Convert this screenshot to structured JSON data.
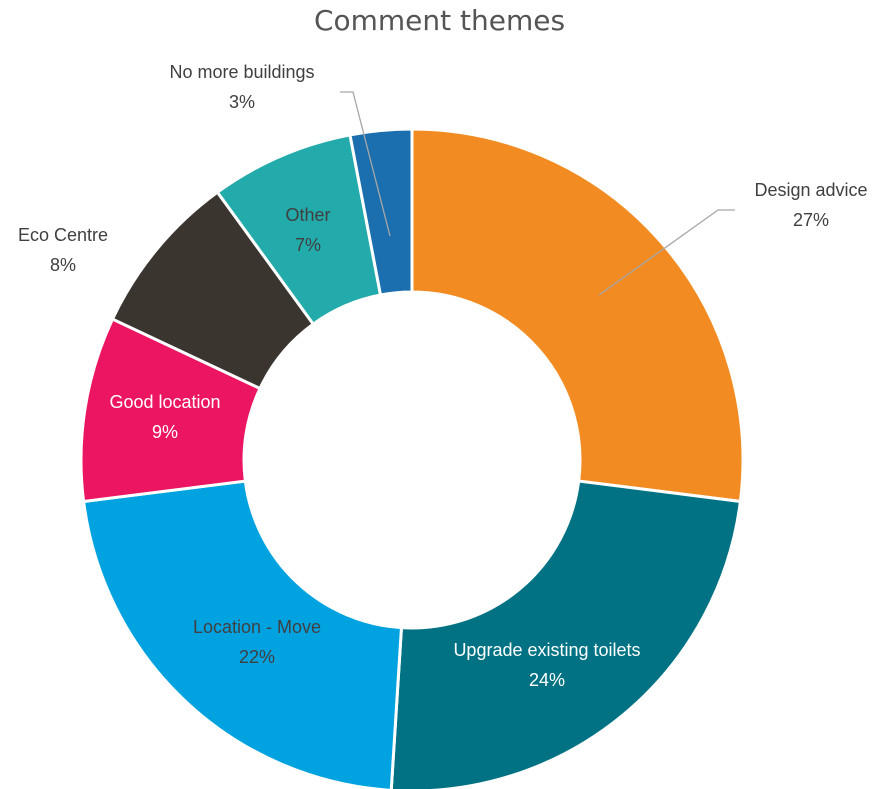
{
  "chart_data": {
    "type": "pie",
    "variant": "doughnut",
    "title": "Comment themes",
    "unit": "%",
    "slices": [
      {
        "label": "Design advice",
        "value": 27,
        "pct_label": "27%",
        "color": "#F28C22",
        "label_color": "#404040"
      },
      {
        "label": "Upgrade existing toilets",
        "value": 24,
        "pct_label": "24%",
        "color": "#007283",
        "label_color": "#FFFFFF"
      },
      {
        "label": "Location - Move",
        "value": 22,
        "pct_label": "22%",
        "color": "#00A2E0",
        "label_color": "#404040"
      },
      {
        "label": "Good location",
        "value": 9,
        "pct_label": "9%",
        "color": "#EC1561",
        "label_color": "#FFFFFF"
      },
      {
        "label": "Eco Centre",
        "value": 8,
        "pct_label": "8%",
        "color": "#3B3530",
        "label_color": "#404040"
      },
      {
        "label": "Other",
        "value": 7,
        "pct_label": "7%",
        "color": "#22ABAA",
        "label_color": "#404040"
      },
      {
        "label": "No more buildings",
        "value": 3,
        "pct_label": "3%",
        "color": "#1B6FAE",
        "label_color": "#404040"
      }
    ]
  }
}
